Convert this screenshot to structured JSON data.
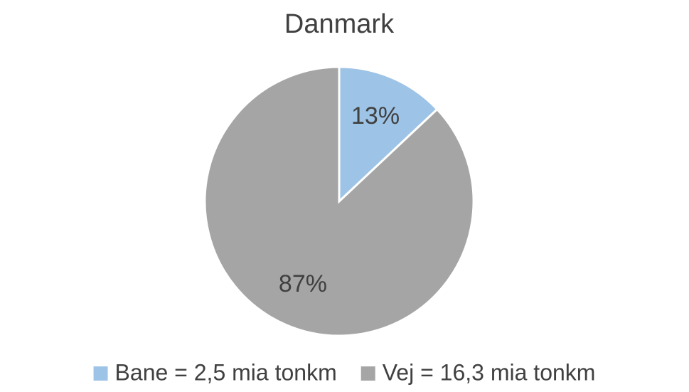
{
  "chart_data": {
    "type": "pie",
    "title": "Danmark",
    "categories": [
      "Bane = 2,5 mia tonkm",
      "Vej = 16,3 mia tonkm"
    ],
    "values": [
      13,
      87
    ],
    "value_labels": [
      "13%",
      "87%"
    ],
    "colors": [
      "#9dc3e6",
      "#a5a5a5"
    ],
    "legend": "bottom"
  }
}
